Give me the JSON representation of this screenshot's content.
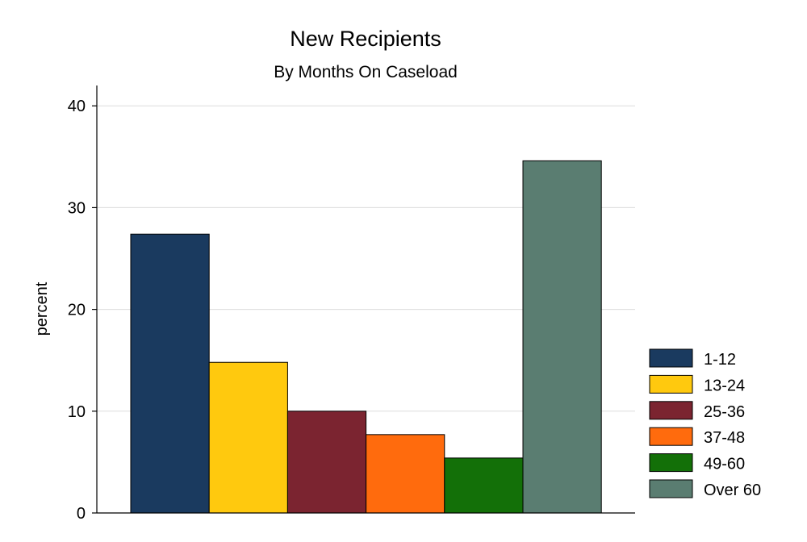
{
  "chart_data": {
    "type": "bar",
    "title": "New Recipients",
    "subtitle": "By Months On Caseload",
    "xlabel": "",
    "ylabel": "percent",
    "ylim": [
      0,
      42
    ],
    "yticks": [
      0,
      10,
      20,
      30,
      40
    ],
    "grid": true,
    "legend_position": "right",
    "series": [
      {
        "name": "1-12",
        "value": 27.4,
        "color": "#1a3a5f"
      },
      {
        "name": "13-24",
        "value": 14.8,
        "color": "#ffc90e"
      },
      {
        "name": "25-36",
        "value": 10.0,
        "color": "#7b2430"
      },
      {
        "name": "37-48",
        "value": 7.7,
        "color": "#ff6b0d"
      },
      {
        "name": "49-60",
        "value": 5.4,
        "color": "#137008"
      },
      {
        "name": "Over 60",
        "value": 34.6,
        "color": "#5a7d71"
      }
    ]
  }
}
